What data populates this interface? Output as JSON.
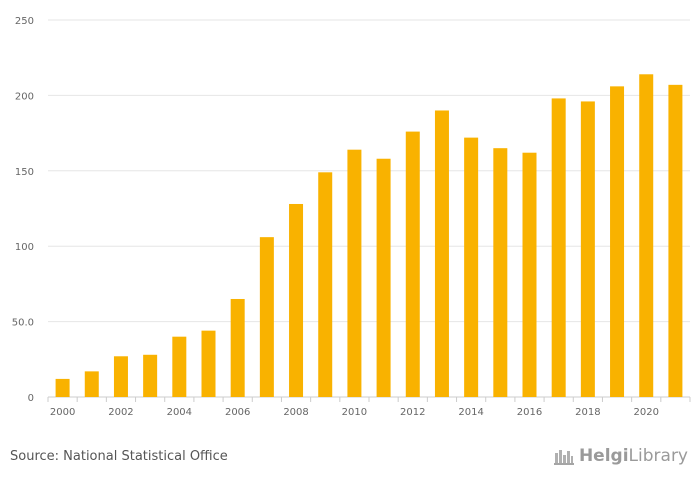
{
  "chart_data": {
    "type": "bar",
    "categories": [
      "2000",
      "2001",
      "2002",
      "2003",
      "2004",
      "2005",
      "2006",
      "2007",
      "2008",
      "2009",
      "2010",
      "2011",
      "2012",
      "2013",
      "2014",
      "2015",
      "2016",
      "2017",
      "2018",
      "2019",
      "2020",
      "2021"
    ],
    "values": [
      12,
      17,
      27,
      28,
      40,
      44,
      65,
      106,
      128,
      149,
      164,
      158,
      176,
      190,
      172,
      165,
      162,
      198,
      196,
      206,
      214,
      207
    ],
    "x_tick_labels": [
      "2000",
      "2002",
      "2004",
      "2006",
      "2008",
      "2010",
      "2012",
      "2014",
      "2016",
      "2018",
      "2020"
    ],
    "y_ticks": [
      {
        "value": 0,
        "label": "0"
      },
      {
        "value": 50,
        "label": "50.0"
      },
      {
        "value": 100,
        "label": "100"
      },
      {
        "value": 150,
        "label": "150"
      },
      {
        "value": 200,
        "label": "200"
      },
      {
        "value": 250,
        "label": "250"
      }
    ],
    "ylim": [
      0,
      250
    ],
    "bar_color": "#f9b200",
    "title": "",
    "xlabel": "",
    "ylabel": ""
  },
  "footer": {
    "source": "Source: National Statistical Office",
    "logo_bold": "Helgi",
    "logo_regular": "Library"
  }
}
